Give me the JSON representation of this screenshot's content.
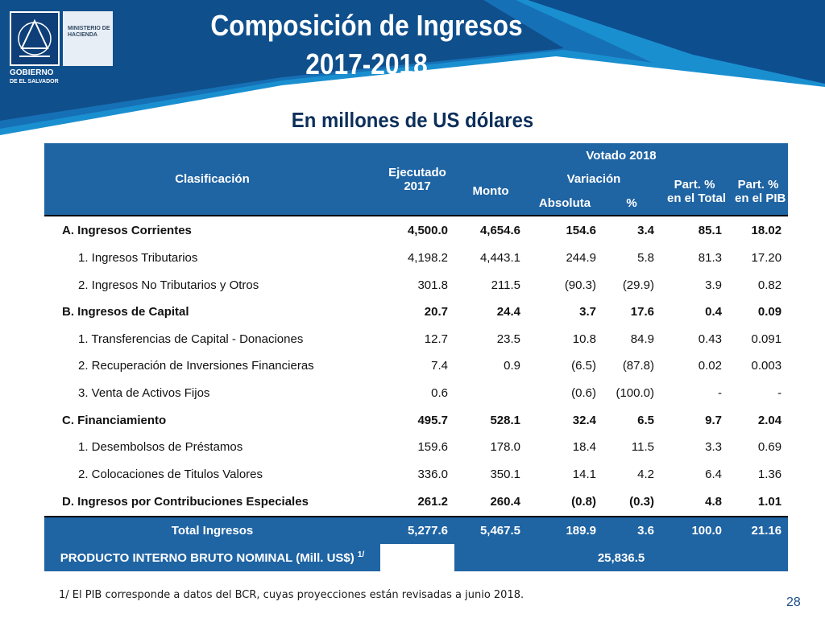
{
  "logo": {
    "ministerio": "MINISTERIO DE HACIENDA",
    "gobierno": "GOBIERNO",
    "pais": "DE EL SALVADOR"
  },
  "title_line1": "Composición de Ingresos",
  "title_line2": "2017-2018",
  "subtitle": "En millones de US dólares",
  "headers": {
    "clasificacion": "Clasificación",
    "ejecutado": "Ejecutado",
    "ejecutado_year": "2017",
    "votado": "Votado 2018",
    "monto": "Monto",
    "variacion": "Variación",
    "absoluta": "Absoluta",
    "pct": "%",
    "part_total_1": "Part. %",
    "part_total_2": "en el Total",
    "part_pib_1": "Part. %",
    "part_pib_2": "en el PIB"
  },
  "rows": [
    {
      "label": "A. Ingresos Corrientes",
      "ejecutado": "4,500.0",
      "monto": "4,654.6",
      "absoluta": "154.6",
      "pct": "3.4",
      "part_total": "85.1",
      "part_pib": "18.02"
    },
    {
      "label": "1. Ingresos Tributarios",
      "ejecutado": "4,198.2",
      "monto": "4,443.1",
      "absoluta": "244.9",
      "pct": "5.8",
      "part_total": "81.3",
      "part_pib": "17.20"
    },
    {
      "label": "2. Ingresos No Tributarios y Otros",
      "ejecutado": "301.8",
      "monto": "211.5",
      "absoluta": "(90.3)",
      "pct": "(29.9)",
      "part_total": "3.9",
      "part_pib": "0.82"
    },
    {
      "label": "B. Ingresos de Capital",
      "ejecutado": "20.7",
      "monto": "24.4",
      "absoluta": "3.7",
      "pct": "17.6",
      "part_total": "0.4",
      "part_pib": "0.09"
    },
    {
      "label": "1. Transferencias de Capital - Donaciones",
      "ejecutado": "12.7",
      "monto": "23.5",
      "absoluta": "10.8",
      "pct": "84.9",
      "part_total": "0.43",
      "part_pib": "0.091"
    },
    {
      "label": "2. Recuperación de Inversiones Financieras",
      "ejecutado": "7.4",
      "monto": "0.9",
      "absoluta": "(6.5)",
      "pct": "(87.8)",
      "part_total": "0.02",
      "part_pib": "0.003"
    },
    {
      "label": "3. Venta de Activos Fijos",
      "ejecutado": "0.6",
      "monto": "",
      "absoluta": "(0.6)",
      "pct": "(100.0)",
      "part_total": "-",
      "part_pib": "-"
    },
    {
      "label": "C. Financiamiento",
      "ejecutado": "495.7",
      "monto": "528.1",
      "absoluta": "32.4",
      "pct": "6.5",
      "part_total": "9.7",
      "part_pib": "2.04"
    },
    {
      "label": "1. Desembolsos de Préstamos",
      "ejecutado": "159.6",
      "monto": "178.0",
      "absoluta": "18.4",
      "pct": "11.5",
      "part_total": "3.3",
      "part_pib": "0.69"
    },
    {
      "label": "2. Colocaciones de Titulos Valores",
      "ejecutado": "336.0",
      "monto": "350.1",
      "absoluta": "14.1",
      "pct": "4.2",
      "part_total": "6.4",
      "part_pib": "1.36"
    },
    {
      "label": "D. Ingresos por Contribuciones Especiales",
      "ejecutado": "261.2",
      "monto": "260.4",
      "absoluta": "(0.8)",
      "pct": "(0.3)",
      "part_total": "4.8",
      "part_pib": "1.01"
    }
  ],
  "total": {
    "label": "Total Ingresos",
    "ejecutado": "5,277.6",
    "monto": "5,467.5",
    "absoluta": "189.9",
    "pct": "3.6",
    "part_total": "100.0",
    "part_pib": "21.16"
  },
  "pib": {
    "label": "PRODUCTO INTERNO BRUTO NOMINAL (Mill. US$)",
    "note_ref": "1/",
    "value": "25,836.5"
  },
  "footnote": "1/ El PIB corresponde a datos del BCR, cuyas proyecciones están revisadas a junio 2018.",
  "page_number": "28",
  "colors": {
    "banner_dark": "#0f4f8c",
    "banner_light": "#1a8fd0",
    "header_fill": "#1f64a3",
    "subtitle_text": "#0c2f5a"
  }
}
